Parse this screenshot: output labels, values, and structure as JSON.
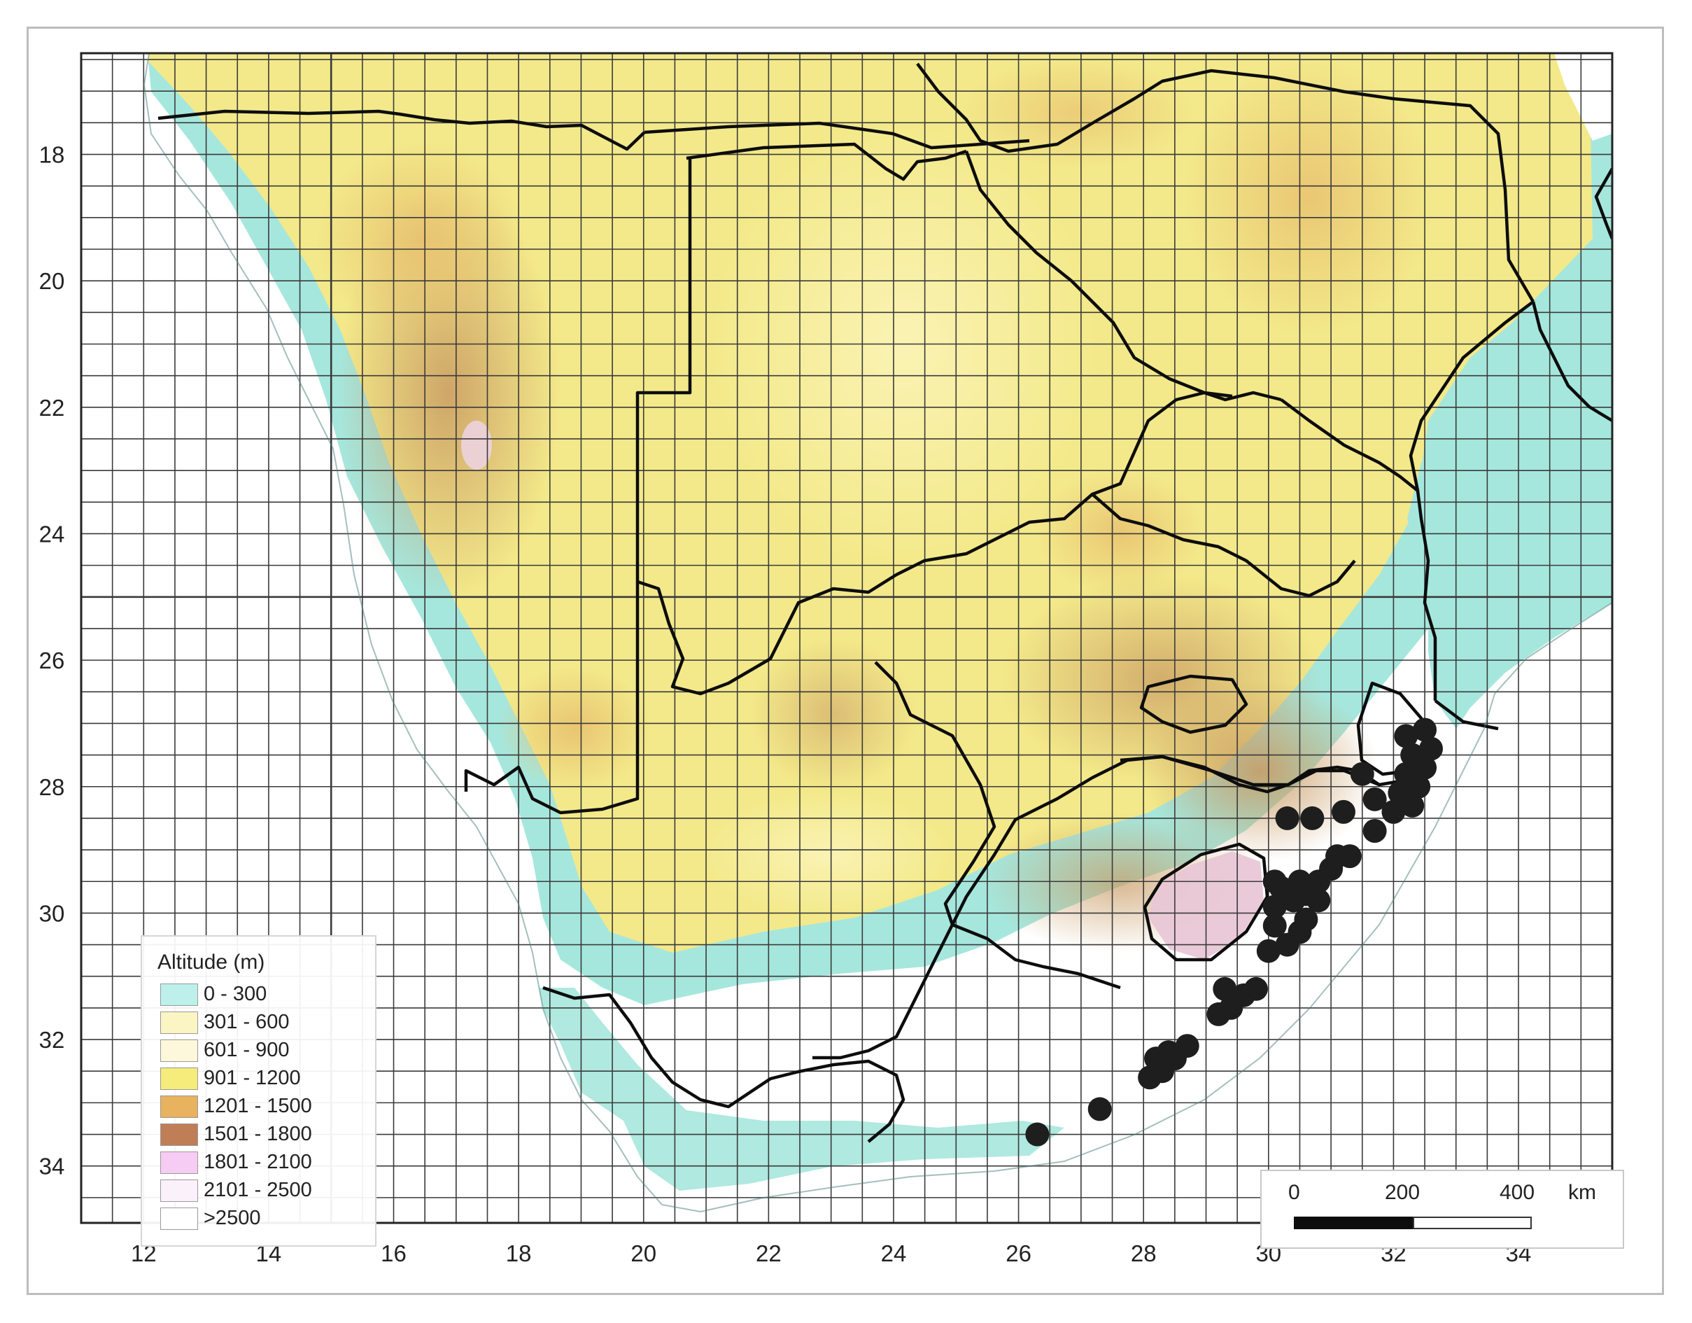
{
  "map": {
    "x_axis": {
      "ticks": [
        "12",
        "14",
        "16",
        "18",
        "20",
        "22",
        "24",
        "26",
        "28",
        "30",
        "32",
        "34"
      ],
      "range": [
        11,
        35.5
      ]
    },
    "y_axis": {
      "ticks": [
        "18",
        "20",
        "22",
        "24",
        "26",
        "28",
        "30",
        "32",
        "34"
      ],
      "range": [
        16.4,
        34.9
      ]
    },
    "grid": true,
    "colors": {
      "ocean": "#ffffff",
      "coast": "#a6e7dd",
      "border": "#0d0d0d",
      "grid": "#3a3a3a",
      "site": "#1e1e1e"
    }
  },
  "legend": {
    "title": "Altitude (m)",
    "items": [
      {
        "label": "0 - 300",
        "color": "#bdf0ea"
      },
      {
        "label": "301 - 600",
        "color": "#fbf5c3"
      },
      {
        "label": "601 - 900",
        "color": "#fdf8dc"
      },
      {
        "label": "901 - 1200",
        "color": "#f6ec7c"
      },
      {
        "label": "1201 - 1500",
        "color": "#e8b25e"
      },
      {
        "label": "1501 - 1800",
        "color": "#c07e57"
      },
      {
        "label": "1801 - 2100",
        "color": "#f7ccf4"
      },
      {
        "label": "2101 - 2500",
        "color": "#fbf1fb"
      },
      {
        "label": ">2500",
        "color": "#ffffff"
      }
    ]
  },
  "scale_bar": {
    "labels": [
      "0",
      "200",
      "400",
      "km"
    ]
  },
  "occurrence_points": [
    [
      26.3,
      33.5
    ],
    [
      27.3,
      33.1
    ],
    [
      28.1,
      32.6
    ],
    [
      28.3,
      32.5
    ],
    [
      28.5,
      32.3
    ],
    [
      28.2,
      32.3
    ],
    [
      28.7,
      32.1
    ],
    [
      28.4,
      32.2
    ],
    [
      29.2,
      31.6
    ],
    [
      29.4,
      31.5
    ],
    [
      29.3,
      31.2
    ],
    [
      29.6,
      31.3
    ],
    [
      29.8,
      31.2
    ],
    [
      30.0,
      30.6
    ],
    [
      30.3,
      30.5
    ],
    [
      30.5,
      30.3
    ],
    [
      30.1,
      30.2
    ],
    [
      30.6,
      30.1
    ],
    [
      30.1,
      29.9
    ],
    [
      30.4,
      29.8
    ],
    [
      30.2,
      29.6
    ],
    [
      30.6,
      29.7
    ],
    [
      30.8,
      29.8
    ],
    [
      30.1,
      29.5
    ],
    [
      30.5,
      29.5
    ],
    [
      30.8,
      29.5
    ],
    [
      31.0,
      29.3
    ],
    [
      31.3,
      29.1
    ],
    [
      31.1,
      29.1
    ],
    [
      30.3,
      28.5
    ],
    [
      30.7,
      28.5
    ],
    [
      31.2,
      28.4
    ],
    [
      31.7,
      28.7
    ],
    [
      32.0,
      28.4
    ],
    [
      32.3,
      28.3
    ],
    [
      31.7,
      28.2
    ],
    [
      32.1,
      28.1
    ],
    [
      32.4,
      28.0
    ],
    [
      31.5,
      27.8
    ],
    [
      32.2,
      27.8
    ],
    [
      32.5,
      27.7
    ],
    [
      32.3,
      27.5
    ],
    [
      32.6,
      27.4
    ],
    [
      32.2,
      27.2
    ],
    [
      32.5,
      27.1
    ]
  ]
}
